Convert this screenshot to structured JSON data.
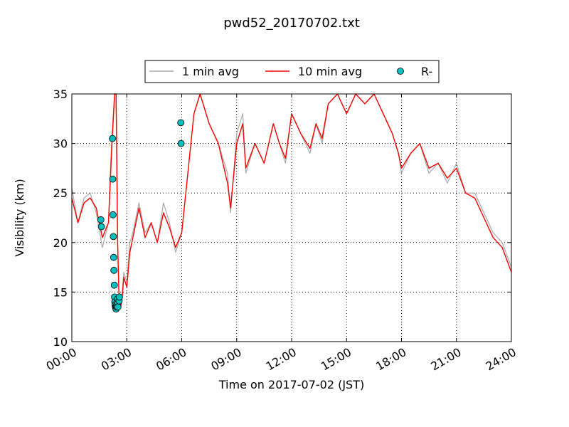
{
  "chart_data": {
    "type": "line",
    "title": "pwd52_20170702.txt",
    "xlabel": "Time on 2017-07-02 (JST)",
    "ylabel": "Visibility (km)",
    "xlim": [
      "00:00",
      "24:00"
    ],
    "ylim": [
      10,
      35
    ],
    "xticks": [
      "00:00",
      "03:00",
      "06:00",
      "09:00",
      "12:00",
      "15:00",
      "18:00",
      "21:00",
      "24:00"
    ],
    "yticks": [
      10,
      15,
      20,
      25,
      30,
      35
    ],
    "grid": true,
    "legend_position": "top-center",
    "series": [
      {
        "name": "1 min avg",
        "kind": "line",
        "color": "#aaaaaa",
        "x": [
          "00:00",
          "00:20",
          "00:40",
          "01:00",
          "01:20",
          "01:40",
          "02:00",
          "02:10",
          "02:20",
          "02:25",
          "02:30",
          "02:35",
          "02:40",
          "02:45",
          "02:50",
          "03:00",
          "03:10",
          "03:20",
          "03:40",
          "04:00",
          "04:20",
          "04:40",
          "05:00",
          "05:20",
          "05:40",
          "06:00",
          "06:20",
          "06:40",
          "07:00",
          "07:30",
          "08:00",
          "08:30",
          "08:40",
          "09:00",
          "09:20",
          "09:30",
          "10:00",
          "10:30",
          "11:00",
          "11:20",
          "11:40",
          "12:00",
          "12:30",
          "13:00",
          "13:20",
          "13:40",
          "14:00",
          "14:30",
          "15:00",
          "15:30",
          "16:00",
          "16:30",
          "17:00",
          "17:30",
          "17:50",
          "18:00",
          "18:30",
          "19:00",
          "19:30",
          "20:00",
          "20:30",
          "21:00",
          "21:30",
          "22:00",
          "22:30",
          "23:00",
          "23:30",
          "24:00"
        ],
        "y": [
          25.5,
          22,
          24.5,
          25,
          23,
          19.5,
          22,
          30,
          35,
          35,
          20,
          14,
          13.5,
          15,
          17,
          16,
          20,
          21,
          24,
          21,
          22,
          20,
          24,
          22,
          19,
          21,
          27,
          33,
          35,
          32,
          30,
          27,
          23,
          31,
          33,
          27,
          30,
          28,
          32,
          30,
          28,
          33,
          31,
          29,
          32,
          30,
          34,
          35,
          33,
          35,
          34,
          35,
          33,
          31,
          29,
          27,
          29,
          30,
          27,
          28,
          26,
          28,
          25,
          25,
          23,
          21,
          20,
          17.5
        ]
      },
      {
        "name": "10 min avg",
        "kind": "line",
        "color": "#ff0000",
        "x": [
          "00:00",
          "00:20",
          "00:40",
          "01:00",
          "01:20",
          "01:40",
          "02:00",
          "02:10",
          "02:20",
          "02:25",
          "02:30",
          "02:35",
          "02:40",
          "02:45",
          "02:50",
          "03:00",
          "03:10",
          "03:20",
          "03:40",
          "04:00",
          "04:20",
          "04:40",
          "05:00",
          "05:20",
          "05:40",
          "06:00",
          "06:20",
          "06:40",
          "07:00",
          "07:30",
          "08:00",
          "08:30",
          "08:40",
          "09:00",
          "09:20",
          "09:30",
          "10:00",
          "10:30",
          "11:00",
          "11:20",
          "11:40",
          "12:00",
          "12:30",
          "13:00",
          "13:20",
          "13:40",
          "14:00",
          "14:30",
          "15:00",
          "15:30",
          "16:00",
          "16:30",
          "17:00",
          "17:30",
          "17:50",
          "18:00",
          "18:30",
          "19:00",
          "19:30",
          "20:00",
          "20:30",
          "21:00",
          "21:30",
          "22:00",
          "22:30",
          "23:00",
          "23:30",
          "24:00"
        ],
        "y": [
          24.5,
          22,
          24,
          24.5,
          23.5,
          20.5,
          22,
          29,
          35,
          35,
          20,
          14,
          13.5,
          14.5,
          16.5,
          15.5,
          19,
          20.5,
          23.5,
          20.5,
          22,
          20,
          23,
          21.5,
          19.5,
          21,
          27,
          33,
          35,
          32,
          30,
          26,
          23.5,
          30,
          32,
          27.5,
          30,
          28,
          32,
          30,
          28.5,
          33,
          31,
          29.5,
          32,
          30.5,
          34,
          35,
          33,
          35,
          34,
          35,
          33,
          31,
          29,
          27.5,
          29,
          30,
          27.5,
          28,
          26.5,
          27.5,
          25,
          24.5,
          22.5,
          20.5,
          19.5,
          17
        ]
      },
      {
        "name": "R-",
        "kind": "scatter",
        "color": "#00bfbf",
        "x": [
          "01:35",
          "01:37",
          "02:13",
          "02:14",
          "02:15",
          "02:16",
          "02:17",
          "02:18",
          "02:19",
          "02:20",
          "02:21",
          "02:22",
          "02:23",
          "02:24",
          "02:25",
          "02:26",
          "02:27",
          "02:28",
          "02:29",
          "02:30",
          "02:31",
          "02:35",
          "02:36",
          "05:57",
          "05:58"
        ],
        "y": [
          22.3,
          21.6,
          30.5,
          26.4,
          22.8,
          20.6,
          18.5,
          17.2,
          15.7,
          14.5,
          14.0,
          13.7,
          13.5,
          13.4,
          13.3,
          13.5,
          13.6,
          13.8,
          14.0,
          14.3,
          13.5,
          14.1,
          14.5,
          32.1,
          30.0
        ]
      }
    ]
  }
}
